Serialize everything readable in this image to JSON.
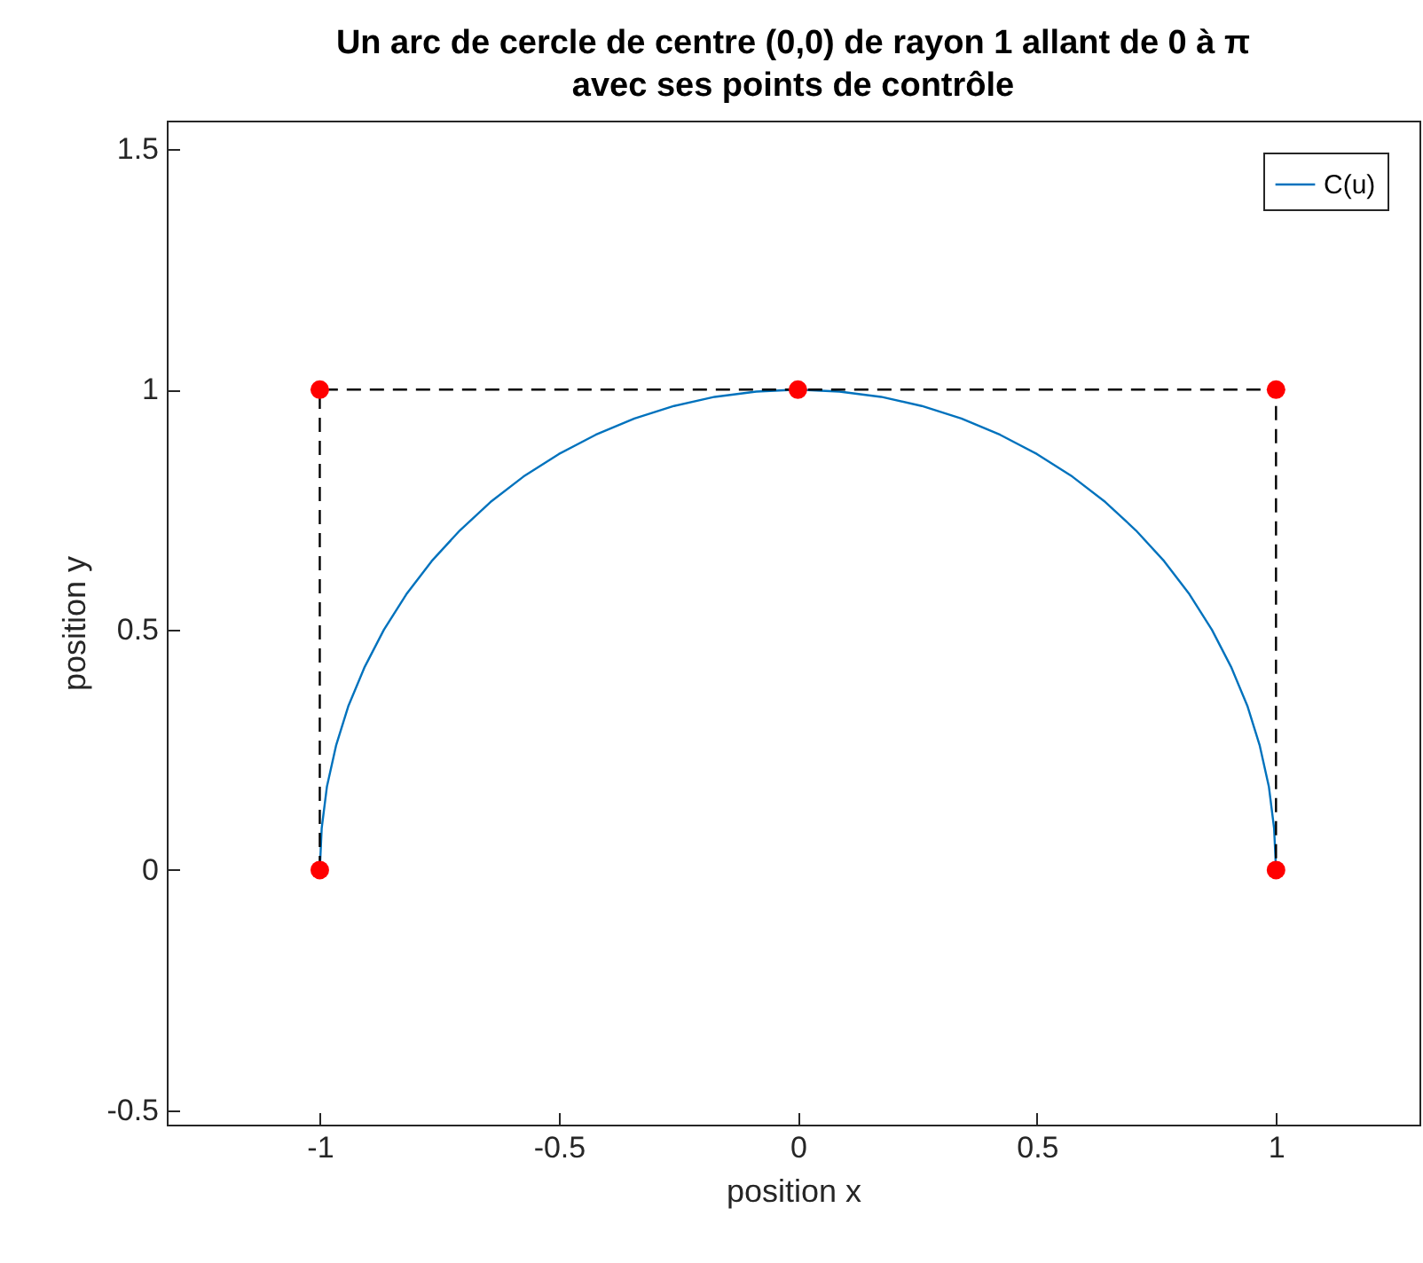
{
  "chart_data": {
    "type": "line",
    "title": "Un arc de cercle de centre (0,0) de rayon 1 allant de 0 à π\navec ses points de contrôle",
    "xlabel": "position x",
    "ylabel": "position y",
    "xlim": [
      -1.32,
      1.3
    ],
    "ylim": [
      -0.53,
      1.56
    ],
    "xticks": [
      -1,
      -0.5,
      0,
      0.5,
      1
    ],
    "yticks": [
      -0.5,
      0,
      0.5,
      1,
      1.5
    ],
    "grid": false,
    "legend": "top right",
    "series": [
      {
        "name": "C(u)",
        "color": "#0072bd",
        "line_style": "solid",
        "x": [
          1,
          0.996,
          0.985,
          0.966,
          0.94,
          0.906,
          0.866,
          0.819,
          0.766,
          0.707,
          0.643,
          0.574,
          0.5,
          0.423,
          0.342,
          0.259,
          0.174,
          0.087,
          0,
          -0.087,
          -0.174,
          -0.259,
          -0.342,
          -0.423,
          -0.5,
          -0.574,
          -0.643,
          -0.707,
          -0.766,
          -0.819,
          -0.866,
          -0.906,
          -0.94,
          -0.966,
          -0.985,
          -0.996,
          -1
        ],
        "values": [
          0,
          0.087,
          0.174,
          0.259,
          0.342,
          0.423,
          0.5,
          0.574,
          0.643,
          0.707,
          0.766,
          0.819,
          0.866,
          0.906,
          0.94,
          0.966,
          0.985,
          0.996,
          1,
          0.996,
          0.985,
          0.966,
          0.94,
          0.906,
          0.866,
          0.819,
          0.766,
          0.707,
          0.643,
          0.574,
          0.5,
          0.423,
          0.342,
          0.259,
          0.174,
          0.087,
          0
        ]
      },
      {
        "color": "#000000",
        "line_style": "dashed",
        "x": [
          -1,
          -1,
          0,
          1,
          1
        ],
        "values": [
          0,
          1,
          1,
          1,
          0
        ]
      },
      {
        "type": "scatter",
        "color": "#ff0000",
        "marker": "circle",
        "x": [
          -1,
          -1,
          0,
          1,
          1
        ],
        "values": [
          0,
          1,
          1,
          1,
          0
        ]
      }
    ]
  }
}
